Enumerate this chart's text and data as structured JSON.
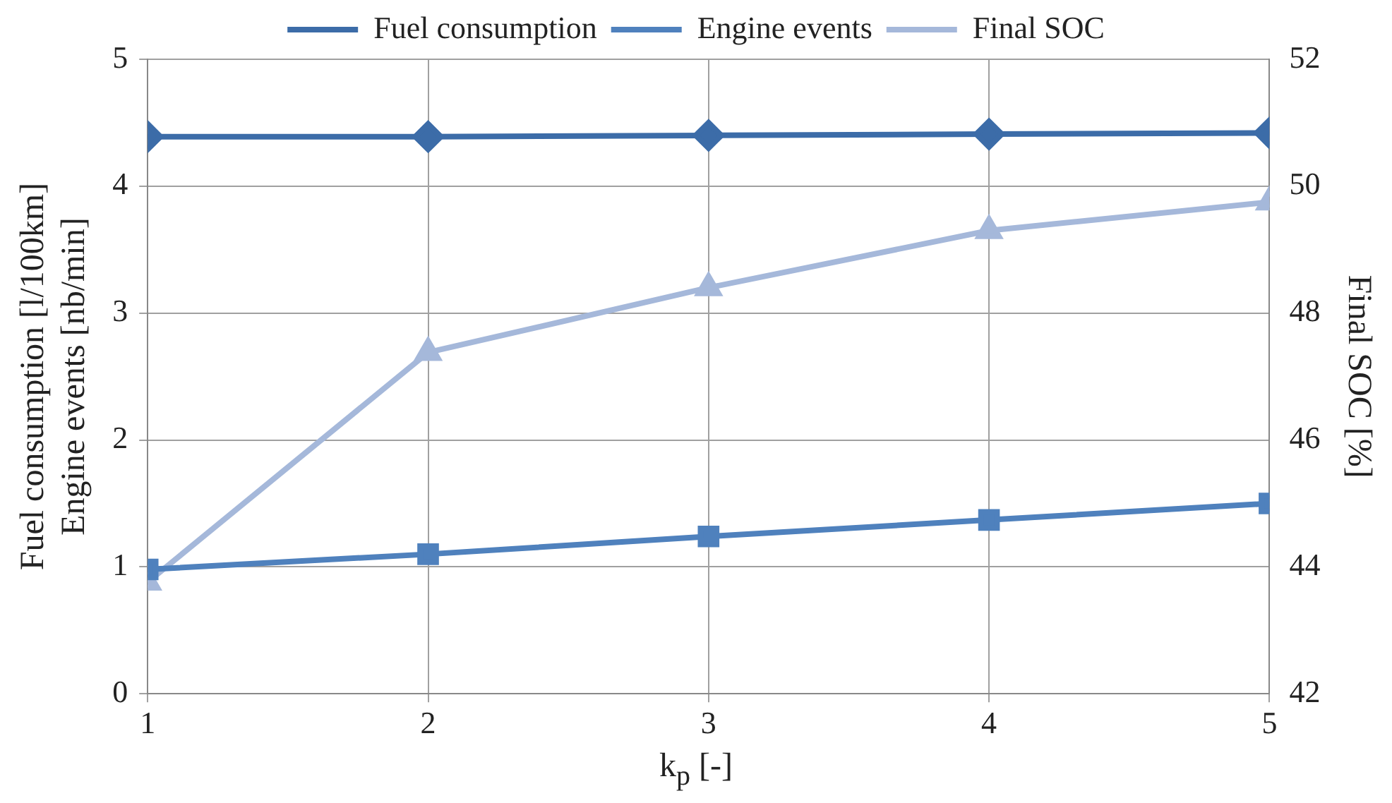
{
  "chart_data": {
    "type": "line",
    "xlabel": "k$_{p}$ [-]",
    "ylabel": "Fuel consumption [l/100km]\nEngine events [nb/min]",
    "y2label": "Final SOC [%]",
    "x": [
      1,
      2,
      3,
      4,
      5
    ],
    "xlim": [
      1,
      5
    ],
    "xticks": [
      1,
      2,
      3,
      4,
      5
    ],
    "ylim": [
      0,
      5
    ],
    "yticks": [
      0,
      1,
      2,
      3,
      4,
      5
    ],
    "y2lim": [
      42,
      52
    ],
    "y2ticks": [
      42,
      44,
      46,
      48,
      50,
      52
    ],
    "grid": true,
    "legend": "top",
    "series": [
      {
        "name": "Fuel consumption",
        "color": "#3c6ca8",
        "marker": "diamond",
        "values": [
          4.39,
          4.39,
          4.4,
          4.41,
          4.42
        ]
      },
      {
        "name": "Engine events",
        "color": "#4f81bd",
        "marker": "square",
        "values": [
          0.98,
          1.1,
          1.24,
          1.37,
          1.5
        ]
      },
      {
        "name": "Final SOC",
        "color": "#a5b8da",
        "marker": "triangle",
        "axis": "y2",
        "values": [
          43.76,
          47.38,
          48.4,
          49.3,
          49.75
        ]
      }
    ]
  }
}
